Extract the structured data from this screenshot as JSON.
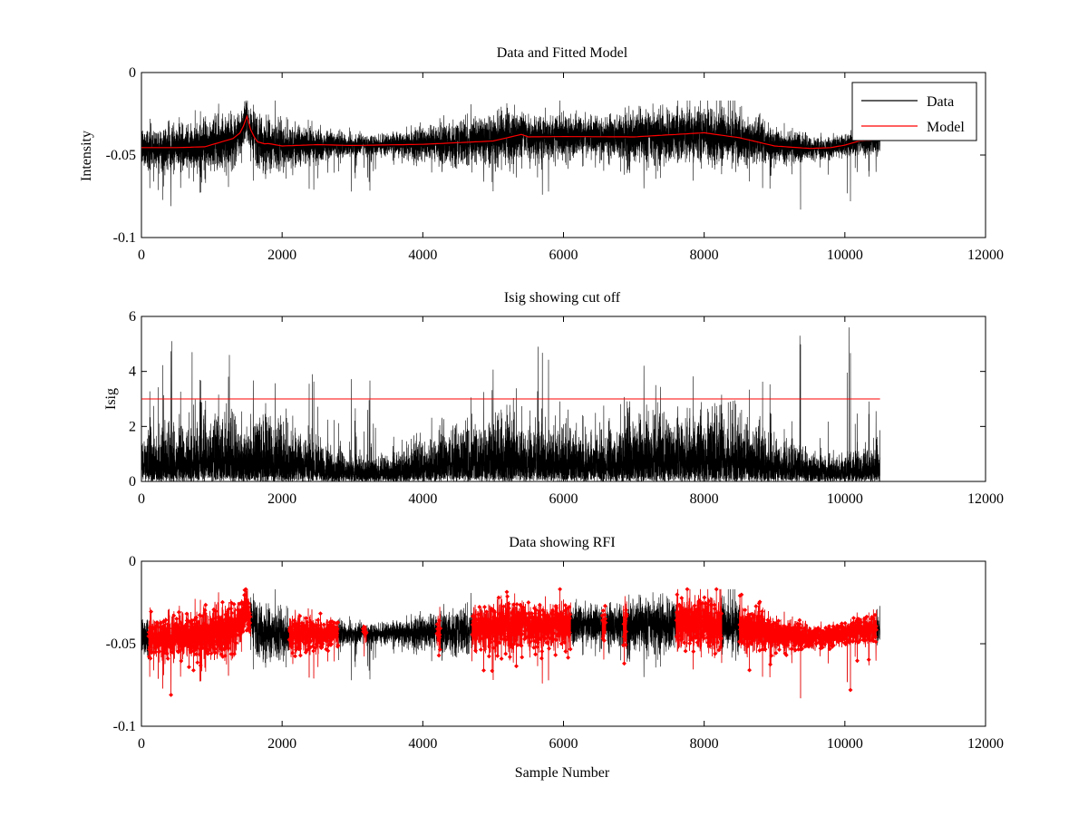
{
  "figure": {
    "background": "#ffffff"
  },
  "chart_data": [
    {
      "type": "line",
      "title": "Data and Fitted Model",
      "xlabel": "",
      "ylabel": "Intensity",
      "xlim": [
        0,
        12000
      ],
      "ylim": [
        -0.1,
        0
      ],
      "xticks": [
        0,
        2000,
        4000,
        6000,
        8000,
        10000,
        12000
      ],
      "xtick_labels": [
        "0",
        "2000",
        "4000",
        "6000",
        "8000",
        "10000",
        "12000"
      ],
      "yticks": [
        0,
        -0.05,
        -0.1
      ],
      "ytick_labels": [
        "0",
        "-0.05",
        "-0.1"
      ],
      "legend": {
        "position": "top-right",
        "entries": [
          "Data",
          "Model"
        ]
      },
      "series": [
        {
          "name": "Data",
          "color": "#000000",
          "kind": "noise",
          "x_range": [
            0,
            10500
          ],
          "n_points": 10500,
          "baseline_source": "Model",
          "noise_sd": 0.006,
          "extremes": [
            [
              420,
              -0.081
            ],
            [
              1490,
              -0.019
            ],
            [
              2450,
              -0.071
            ],
            [
              5000,
              -0.072
            ],
            [
              5700,
              -0.074
            ],
            [
              5950,
              -0.017
            ],
            [
              8830,
              -0.07
            ],
            [
              9370,
              -0.083
            ],
            [
              10080,
              -0.078
            ]
          ]
        },
        {
          "name": "Model",
          "color": "#ff0000",
          "kind": "line",
          "x": [
            0,
            500,
            900,
            1100,
            1300,
            1420,
            1500,
            1560,
            1650,
            1750,
            1800,
            2000,
            2500,
            3000,
            4000,
            5000,
            5400,
            5500,
            6000,
            7000,
            8000,
            8500,
            9000,
            9500,
            9800,
            10000,
            10200,
            10500
          ],
          "values": [
            -0.0455,
            -0.0455,
            -0.045,
            -0.0425,
            -0.04,
            -0.036,
            -0.0265,
            -0.036,
            -0.042,
            -0.0432,
            -0.043,
            -0.0445,
            -0.0437,
            -0.0442,
            -0.0435,
            -0.0415,
            -0.0375,
            -0.039,
            -0.0388,
            -0.039,
            -0.0365,
            -0.0395,
            -0.0445,
            -0.046,
            -0.0455,
            -0.044,
            -0.0415,
            -0.041
          ]
        }
      ]
    },
    {
      "type": "line",
      "title": "Isig showing cut off",
      "xlabel": "",
      "ylabel": "Isig",
      "xlim": [
        0,
        12000
      ],
      "ylim": [
        0,
        6
      ],
      "xticks": [
        0,
        2000,
        4000,
        6000,
        8000,
        10000,
        12000
      ],
      "xtick_labels": [
        "0",
        "2000",
        "4000",
        "6000",
        "8000",
        "10000",
        "12000"
      ],
      "yticks": [
        0,
        2,
        4,
        6
      ],
      "ytick_labels": [
        "0",
        "2",
        "4",
        "6"
      ],
      "series": [
        {
          "name": "Isig",
          "color": "#000000",
          "kind": "abs-noise",
          "x_range": [
            0,
            10500
          ],
          "n_points": 10500,
          "scale": 0.8,
          "extremes": [
            [
              430,
              5.1
            ],
            [
              720,
              4.7
            ],
            [
              1250,
              4.6
            ],
            [
              2430,
              3.9
            ],
            [
              5640,
              4.9
            ],
            [
              9360,
              5.3
            ],
            [
              10060,
              5.6
            ]
          ]
        },
        {
          "name": "Cut off",
          "color": "#ff0000",
          "kind": "line",
          "x": [
            0,
            10500
          ],
          "values": [
            3,
            3
          ]
        }
      ]
    },
    {
      "type": "line",
      "title": "Data showing RFI",
      "xlabel": "Sample Number",
      "ylabel": "",
      "xlim": [
        0,
        12000
      ],
      "ylim": [
        -0.1,
        0
      ],
      "xticks": [
        0,
        2000,
        4000,
        6000,
        8000,
        10000,
        12000
      ],
      "xtick_labels": [
        "0",
        "2000",
        "4000",
        "6000",
        "8000",
        "10000",
        "12000"
      ],
      "yticks": [
        0,
        -0.05,
        -0.1
      ],
      "ytick_labels": [
        "0",
        "-0.05",
        "-0.1"
      ],
      "series": [
        {
          "name": "Data",
          "color": "#000000",
          "kind": "noise",
          "x_range": [
            0,
            10500
          ],
          "n_points": 10500,
          "baseline_source": "panel1.Model",
          "noise_sd": 0.006
        },
        {
          "name": "RFI",
          "color": "#ff0000",
          "kind": "flagged-markers",
          "marker": "diamond",
          "segments": [
            [
              100,
              1550
            ],
            [
              2100,
              2800
            ],
            [
              3150,
              3200
            ],
            [
              4200,
              4250
            ],
            [
              4700,
              6100
            ],
            [
              6550,
              6600
            ],
            [
              6850,
              6900
            ],
            [
              7600,
              8250
            ],
            [
              8500,
              10450
            ]
          ]
        }
      ]
    }
  ]
}
